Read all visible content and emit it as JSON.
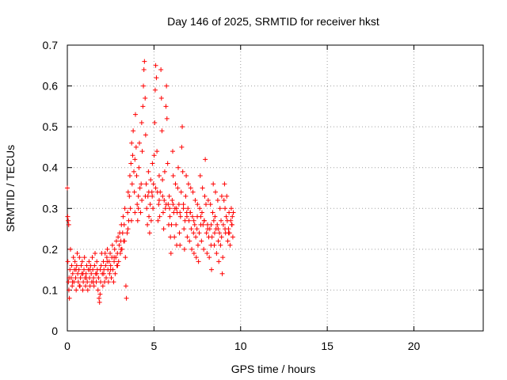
{
  "chart_data": {
    "type": "scatter",
    "title": "Day 146 of 2025, SRMTID for receiver hkst",
    "xlabel": "GPS time / hours",
    "ylabel": "SRMTID / TECUs",
    "xlim": [
      0,
      24
    ],
    "ylim": [
      0,
      0.7
    ],
    "xticks": [
      0,
      5,
      10,
      15,
      20
    ],
    "yticks": [
      0,
      0.1,
      0.2,
      0.3,
      0.4,
      0.5,
      0.6,
      0.7
    ],
    "grid": true,
    "marker": "plus",
    "color": "#ff0000",
    "points": [
      [
        0.0,
        0.35
      ],
      [
        0.02,
        0.28
      ],
      [
        0.05,
        0.27
      ],
      [
        0.08,
        0.26
      ],
      [
        0.03,
        0.17
      ],
      [
        0.06,
        0.12
      ],
      [
        0.09,
        0.1
      ],
      [
        0.12,
        0.08
      ],
      [
        0.15,
        0.15
      ],
      [
        0.18,
        0.2
      ],
      [
        0.22,
        0.13
      ],
      [
        0.25,
        0.16
      ],
      [
        0.28,
        0.11
      ],
      [
        0.31,
        0.14
      ],
      [
        0.35,
        0.18
      ],
      [
        0.38,
        0.12
      ],
      [
        0.41,
        0.15
      ],
      [
        0.44,
        0.17
      ],
      [
        0.48,
        0.13
      ],
      [
        0.51,
        0.1
      ],
      [
        0.54,
        0.16
      ],
      [
        0.57,
        0.19
      ],
      [
        0.6,
        0.14
      ],
      [
        0.63,
        0.12
      ],
      [
        0.67,
        0.15
      ],
      [
        0.7,
        0.18
      ],
      [
        0.73,
        0.11
      ],
      [
        0.76,
        0.13
      ],
      [
        0.8,
        0.16
      ],
      [
        0.83,
        0.14
      ],
      [
        0.86,
        0.17
      ],
      [
        0.89,
        0.1
      ],
      [
        0.92,
        0.12
      ],
      [
        0.96,
        0.15
      ],
      [
        0.99,
        0.18
      ],
      [
        1.02,
        0.13
      ],
      [
        1.05,
        0.11
      ],
      [
        1.08,
        0.14
      ],
      [
        1.12,
        0.16
      ],
      [
        1.15,
        0.12
      ],
      [
        1.18,
        0.1
      ],
      [
        1.21,
        0.15
      ],
      [
        1.25,
        0.17
      ],
      [
        1.28,
        0.13
      ],
      [
        1.31,
        0.11
      ],
      [
        1.34,
        0.16
      ],
      [
        1.38,
        0.14
      ],
      [
        1.41,
        0.12
      ],
      [
        1.44,
        0.18
      ],
      [
        1.47,
        0.15
      ],
      [
        1.51,
        0.13
      ],
      [
        1.54,
        0.11
      ],
      [
        1.57,
        0.16
      ],
      [
        1.6,
        0.19
      ],
      [
        1.64,
        0.14
      ],
      [
        1.67,
        0.12
      ],
      [
        1.7,
        0.17
      ],
      [
        1.73,
        0.15
      ],
      [
        1.77,
        0.1
      ],
      [
        1.8,
        0.13
      ],
      [
        1.83,
        0.08
      ],
      [
        1.86,
        0.07
      ],
      [
        1.89,
        0.09
      ],
      [
        1.92,
        0.12
      ],
      [
        1.95,
        0.16
      ],
      [
        1.98,
        0.19
      ],
      [
        2.02,
        0.14
      ],
      [
        2.05,
        0.11
      ],
      [
        2.08,
        0.17
      ],
      [
        2.11,
        0.15
      ],
      [
        2.15,
        0.12
      ],
      [
        2.18,
        0.19
      ],
      [
        2.21,
        0.16
      ],
      [
        2.24,
        0.13
      ],
      [
        2.28,
        0.18
      ],
      [
        2.31,
        0.2
      ],
      [
        2.34,
        0.15
      ],
      [
        2.37,
        0.12
      ],
      [
        2.41,
        0.17
      ],
      [
        2.44,
        0.14
      ],
      [
        2.47,
        0.19
      ],
      [
        2.5,
        0.16
      ],
      [
        2.54,
        0.13
      ],
      [
        2.57,
        0.18
      ],
      [
        2.6,
        0.21
      ],
      [
        2.63,
        0.15
      ],
      [
        2.67,
        0.12
      ],
      [
        2.7,
        0.17
      ],
      [
        2.73,
        0.2
      ],
      [
        2.76,
        0.14
      ],
      [
        2.8,
        0.18
      ],
      [
        2.83,
        0.22
      ],
      [
        2.86,
        0.16
      ],
      [
        2.89,
        0.19
      ],
      [
        2.93,
        0.23
      ],
      [
        2.96,
        0.17
      ],
      [
        2.99,
        0.21
      ],
      [
        3.02,
        0.24
      ],
      [
        3.06,
        0.19
      ],
      [
        3.09,
        0.22
      ],
      [
        3.12,
        0.26
      ],
      [
        3.15,
        0.2
      ],
      [
        3.19,
        0.24
      ],
      [
        3.22,
        0.28
      ],
      [
        3.25,
        0.22
      ],
      [
        3.28,
        0.26
      ],
      [
        3.32,
        0.3
      ],
      [
        3.35,
        0.18
      ],
      [
        3.38,
        0.11
      ],
      [
        3.41,
        0.08
      ],
      [
        3.45,
        0.24
      ],
      [
        3.48,
        0.29
      ],
      [
        3.51,
        0.34
      ],
      [
        3.54,
        0.27
      ],
      [
        3.58,
        0.33
      ],
      [
        3.61,
        0.38
      ],
      [
        3.64,
        0.3
      ],
      [
        3.67,
        0.41
      ],
      [
        3.71,
        0.46
      ],
      [
        3.74,
        0.36
      ],
      [
        3.77,
        0.43
      ],
      [
        3.8,
        0.49
      ],
      [
        3.84,
        0.39
      ],
      [
        3.87,
        0.34
      ],
      [
        3.9,
        0.42
      ],
      [
        3.93,
        0.53
      ],
      [
        3.97,
        0.45
      ],
      [
        4.0,
        0.38
      ],
      [
        4.03,
        0.31
      ],
      [
        4.06,
        0.27
      ],
      [
        4.1,
        0.33
      ],
      [
        4.13,
        0.4
      ],
      [
        4.16,
        0.46
      ],
      [
        4.19,
        0.35
      ],
      [
        4.23,
        0.29
      ],
      [
        4.26,
        0.36
      ],
      [
        4.29,
        0.51
      ],
      [
        4.32,
        0.44
      ],
      [
        4.36,
        0.55
      ],
      [
        4.39,
        0.6
      ],
      [
        4.42,
        0.64
      ],
      [
        4.45,
        0.66
      ],
      [
        4.49,
        0.57
      ],
      [
        4.52,
        0.48
      ],
      [
        4.55,
        0.36
      ],
      [
        4.58,
        0.3
      ],
      [
        4.62,
        0.26
      ],
      [
        4.65,
        0.33
      ],
      [
        4.68,
        0.39
      ],
      [
        4.71,
        0.28
      ],
      [
        4.75,
        0.24
      ],
      [
        4.78,
        0.31
      ],
      [
        4.81,
        0.37
      ],
      [
        4.84,
        0.27
      ],
      [
        4.88,
        0.34
      ],
      [
        4.91,
        0.41
      ],
      [
        4.94,
        0.3
      ],
      [
        4.97,
        0.36
      ],
      [
        5.01,
        0.43
      ],
      [
        5.04,
        0.51
      ],
      [
        5.07,
        0.59
      ],
      [
        5.1,
        0.65
      ],
      [
        5.14,
        0.62
      ],
      [
        5.17,
        0.44
      ],
      [
        5.2,
        0.34
      ],
      [
        5.23,
        0.27
      ],
      [
        5.27,
        0.31
      ],
      [
        5.3,
        0.38
      ],
      [
        5.33,
        0.28
      ],
      [
        5.36,
        0.34
      ],
      [
        5.4,
        0.64
      ],
      [
        5.43,
        0.57
      ],
      [
        5.46,
        0.49
      ],
      [
        5.49,
        0.37
      ],
      [
        5.53,
        0.29
      ],
      [
        5.56,
        0.25
      ],
      [
        5.59,
        0.32
      ],
      [
        5.62,
        0.39
      ],
      [
        5.66,
        0.3
      ],
      [
        5.69,
        0.55
      ],
      [
        5.72,
        0.6
      ],
      [
        5.75,
        0.52
      ],
      [
        5.79,
        0.41
      ],
      [
        5.82,
        0.31
      ],
      [
        5.85,
        0.26
      ],
      [
        5.88,
        0.33
      ],
      [
        5.92,
        0.28
      ],
      [
        5.95,
        0.23
      ],
      [
        5.98,
        0.19
      ],
      [
        6.01,
        0.26
      ],
      [
        6.05,
        0.32
      ],
      [
        6.08,
        0.44
      ],
      [
        6.11,
        0.38
      ],
      [
        6.14,
        0.29
      ],
      [
        6.18,
        0.23
      ],
      [
        6.21,
        0.3
      ],
      [
        6.24,
        0.36
      ],
      [
        6.27,
        0.26
      ],
      [
        6.31,
        0.21
      ],
      [
        6.34,
        0.29
      ],
      [
        6.37,
        0.35
      ],
      [
        6.4,
        0.4
      ],
      [
        6.44,
        0.31
      ],
      [
        6.47,
        0.24
      ],
      [
        6.5,
        0.21
      ],
      [
        6.53,
        0.28
      ],
      [
        6.57,
        0.34
      ],
      [
        6.6,
        0.45
      ],
      [
        6.63,
        0.5
      ],
      [
        6.66,
        0.39
      ],
      [
        6.7,
        0.31
      ],
      [
        6.73,
        0.25
      ],
      [
        6.76,
        0.2
      ],
      [
        6.79,
        0.27
      ],
      [
        6.83,
        0.33
      ],
      [
        6.86,
        0.38
      ],
      [
        6.89,
        0.29
      ],
      [
        6.92,
        0.23
      ],
      [
        6.96,
        0.3
      ],
      [
        6.99,
        0.36
      ],
      [
        7.02,
        0.27
      ],
      [
        7.05,
        0.22
      ],
      [
        7.09,
        0.29
      ],
      [
        7.12,
        0.35
      ],
      [
        7.15,
        0.25
      ],
      [
        7.18,
        0.2
      ],
      [
        7.22,
        0.28
      ],
      [
        7.25,
        0.34
      ],
      [
        7.28,
        0.24
      ],
      [
        7.31,
        0.19
      ],
      [
        7.35,
        0.26
      ],
      [
        7.38,
        0.32
      ],
      [
        7.41,
        0.23
      ],
      [
        7.44,
        0.18
      ],
      [
        7.48,
        0.25
      ],
      [
        7.51,
        0.31
      ],
      [
        7.54,
        0.21
      ],
      [
        7.57,
        0.17
      ],
      [
        7.61,
        0.24
      ],
      [
        7.64,
        0.3
      ],
      [
        7.67,
        0.38
      ],
      [
        7.7,
        0.28
      ],
      [
        7.74,
        0.22
      ],
      [
        7.77,
        0.29
      ],
      [
        7.8,
        0.35
      ],
      [
        7.83,
        0.26
      ],
      [
        7.87,
        0.2
      ],
      [
        7.9,
        0.27
      ],
      [
        7.93,
        0.33
      ],
      [
        7.96,
        0.42
      ],
      [
        8.0,
        0.31
      ],
      [
        8.03,
        0.24
      ],
      [
        8.06,
        0.19
      ],
      [
        8.09,
        0.26
      ],
      [
        8.13,
        0.32
      ],
      [
        8.16,
        0.23
      ],
      [
        8.19,
        0.18
      ],
      [
        8.22,
        0.25
      ],
      [
        8.26,
        0.31
      ],
      [
        8.29,
        0.21
      ],
      [
        8.32,
        0.15
      ],
      [
        8.35,
        0.23
      ],
      [
        8.39,
        0.29
      ],
      [
        8.42,
        0.36
      ],
      [
        8.45,
        0.27
      ],
      [
        8.48,
        0.21
      ],
      [
        8.52,
        0.28
      ],
      [
        8.55,
        0.34
      ],
      [
        8.58,
        0.25
      ],
      [
        8.61,
        0.19
      ],
      [
        8.65,
        0.26
      ],
      [
        8.68,
        0.32
      ],
      [
        8.71,
        0.22
      ],
      [
        8.74,
        0.17
      ],
      [
        8.78,
        0.24
      ],
      [
        8.81,
        0.3
      ],
      [
        8.84,
        0.21
      ],
      [
        8.87,
        0.27
      ],
      [
        8.91,
        0.33
      ],
      [
        8.94,
        0.14
      ],
      [
        8.97,
        0.18
      ],
      [
        9.0,
        0.26
      ],
      [
        9.04,
        0.32
      ],
      [
        9.07,
        0.36
      ],
      [
        9.1,
        0.3
      ],
      [
        9.13,
        0.24
      ],
      [
        9.17,
        0.28
      ],
      [
        9.2,
        0.33
      ],
      [
        9.23,
        0.27
      ],
      [
        9.26,
        0.22
      ],
      [
        9.3,
        0.25
      ],
      [
        9.33,
        0.29
      ],
      [
        9.36,
        0.24
      ],
      [
        9.39,
        0.21
      ],
      [
        9.43,
        0.27
      ],
      [
        9.46,
        0.3
      ],
      [
        9.49,
        0.26
      ],
      [
        9.52,
        0.28
      ],
      [
        9.55,
        0.23
      ],
      [
        9.58,
        0.29
      ],
      [
        0.1,
        0.13
      ],
      [
        0.3,
        0.12
      ],
      [
        0.5,
        0.15
      ],
      [
        0.7,
        0.11
      ],
      [
        0.9,
        0.14
      ],
      [
        1.1,
        0.13
      ],
      [
        1.3,
        0.15
      ],
      [
        1.5,
        0.12
      ],
      [
        1.7,
        0.14
      ],
      [
        1.9,
        0.15
      ],
      [
        2.1,
        0.14
      ],
      [
        2.3,
        0.17
      ],
      [
        2.5,
        0.15
      ],
      [
        2.7,
        0.18
      ],
      [
        2.9,
        0.16
      ],
      [
        3.1,
        0.2
      ],
      [
        3.3,
        0.22
      ],
      [
        3.5,
        0.25
      ],
      [
        3.7,
        0.27
      ],
      [
        3.9,
        0.29
      ],
      [
        4.1,
        0.3
      ],
      [
        4.3,
        0.32
      ],
      [
        4.5,
        0.33
      ],
      [
        4.7,
        0.34
      ],
      [
        4.9,
        0.33
      ],
      [
        5.1,
        0.35
      ],
      [
        5.3,
        0.32
      ],
      [
        5.5,
        0.33
      ],
      [
        5.7,
        0.31
      ],
      [
        5.9,
        0.3
      ],
      [
        6.1,
        0.31
      ],
      [
        6.3,
        0.3
      ],
      [
        6.5,
        0.29
      ],
      [
        6.7,
        0.3
      ],
      [
        6.9,
        0.28
      ],
      [
        7.1,
        0.29
      ],
      [
        7.3,
        0.27
      ],
      [
        7.5,
        0.28
      ],
      [
        7.7,
        0.26
      ],
      [
        7.9,
        0.27
      ],
      [
        8.1,
        0.25
      ],
      [
        8.3,
        0.26
      ],
      [
        8.5,
        0.24
      ],
      [
        8.7,
        0.25
      ],
      [
        8.9,
        0.23
      ],
      [
        9.1,
        0.25
      ],
      [
        9.3,
        0.24
      ],
      [
        9.5,
        0.26
      ]
    ]
  }
}
